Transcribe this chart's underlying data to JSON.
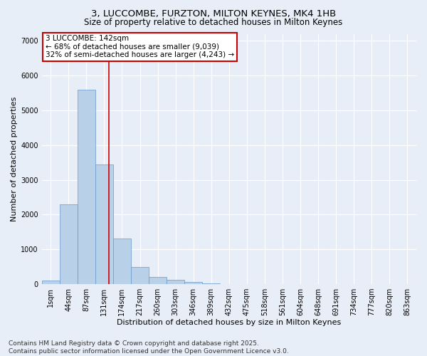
{
  "title1": "3, LUCCOMBE, FURZTON, MILTON KEYNES, MK4 1HB",
  "title2": "Size of property relative to detached houses in Milton Keynes",
  "xlabel": "Distribution of detached houses by size in Milton Keynes",
  "ylabel": "Number of detached properties",
  "categories": [
    "1sqm",
    "44sqm",
    "87sqm",
    "131sqm",
    "174sqm",
    "217sqm",
    "260sqm",
    "303sqm",
    "346sqm",
    "389sqm",
    "432sqm",
    "475sqm",
    "518sqm",
    "561sqm",
    "604sqm",
    "648sqm",
    "691sqm",
    "734sqm",
    "777sqm",
    "820sqm",
    "863sqm"
  ],
  "values": [
    100,
    2300,
    5600,
    3450,
    1320,
    500,
    200,
    130,
    60,
    10,
    0,
    0,
    0,
    0,
    0,
    0,
    0,
    0,
    0,
    0,
    0
  ],
  "bar_color": "#b8d0e8",
  "bar_edge_color": "#6699cc",
  "vline_x": 3.25,
  "vline_color": "#cc0000",
  "annotation_title": "3 LUCCOMBE: 142sqm",
  "annotation_line1": "← 68% of detached houses are smaller (9,039)",
  "annotation_line2": "32% of semi-detached houses are larger (4,243) →",
  "annotation_box_color": "#cc0000",
  "ylim": [
    0,
    7200
  ],
  "yticks": [
    0,
    1000,
    2000,
    3000,
    4000,
    5000,
    6000,
    7000
  ],
  "background_color": "#e8eef8",
  "grid_color": "#ffffff",
  "footer1": "Contains HM Land Registry data © Crown copyright and database right 2025.",
  "footer2": "Contains public sector information licensed under the Open Government Licence v3.0.",
  "title1_fontsize": 9.5,
  "title2_fontsize": 8.5,
  "xlabel_fontsize": 8,
  "ylabel_fontsize": 8,
  "tick_fontsize": 7,
  "footer_fontsize": 6.5,
  "annotation_fontsize": 7.5
}
